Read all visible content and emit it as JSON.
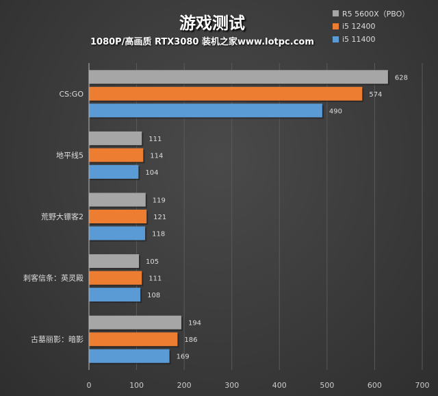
{
  "chart_data": {
    "type": "bar",
    "orientation": "horizontal",
    "title": "游戏测试",
    "subtitle": "1080P/高画质 RTX3080 装机之家www.lotpc.com",
    "categories": [
      "CS:GO",
      "地平线5",
      "荒野大镖客2",
      "刺客信条：英灵殿",
      "古墓丽影：暗影"
    ],
    "series": [
      {
        "name": "R5 5600X（PBO）",
        "color": "#a6a6a6",
        "values": [
          628,
          111,
          119,
          105,
          194
        ]
      },
      {
        "name": "i5 12400",
        "color": "#ed7d31",
        "values": [
          574,
          114,
          121,
          111,
          186
        ]
      },
      {
        "name": "i5 11400",
        "color": "#5b9bd5",
        "values": [
          490,
          104,
          118,
          108,
          169
        ]
      }
    ],
    "xlim": [
      0,
      700
    ],
    "xticks": [
      0,
      100,
      200,
      300,
      400,
      500,
      600,
      700
    ],
    "grid": true,
    "legend": "top-right"
  }
}
